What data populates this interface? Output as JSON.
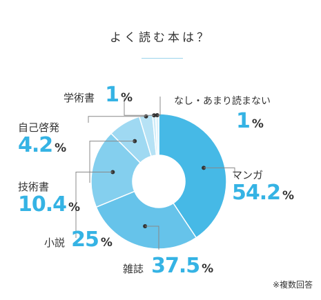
{
  "title": "よく読む本は？",
  "note": "※複数回答",
  "chart_data": {
    "type": "pie",
    "donut": true,
    "title": "よく読む本は？",
    "unit": "%",
    "categories": [
      "マンガ",
      "雑誌",
      "小説",
      "技術書",
      "自己啓発",
      "学術書",
      "なし・あまり読まない"
    ],
    "values": [
      54.2,
      37.5,
      25,
      10.4,
      4.2,
      1,
      1
    ],
    "value_labels": [
      "54.2",
      "37.5",
      "25",
      "10.4",
      "4.2",
      "1",
      "1"
    ],
    "colors": [
      "#46b9e6",
      "#66c3ea",
      "#84cfee",
      "#9fd9f2",
      "#b6e2f5",
      "#cbebf8",
      "#dbf1fa"
    ]
  }
}
